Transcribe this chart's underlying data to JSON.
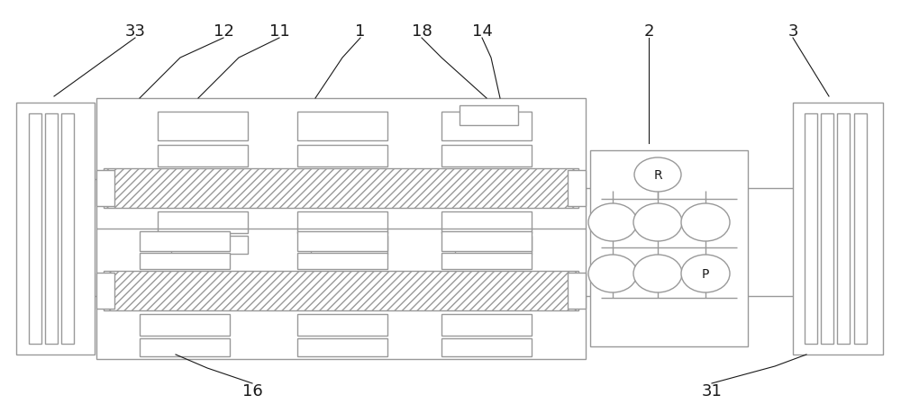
{
  "bg_color": "#ffffff",
  "line_color": "#999999",
  "label_color": "#1a1a1a",
  "label_fontsize": 13,
  "figsize": [
    10.0,
    4.6
  ],
  "dpi": 100
}
